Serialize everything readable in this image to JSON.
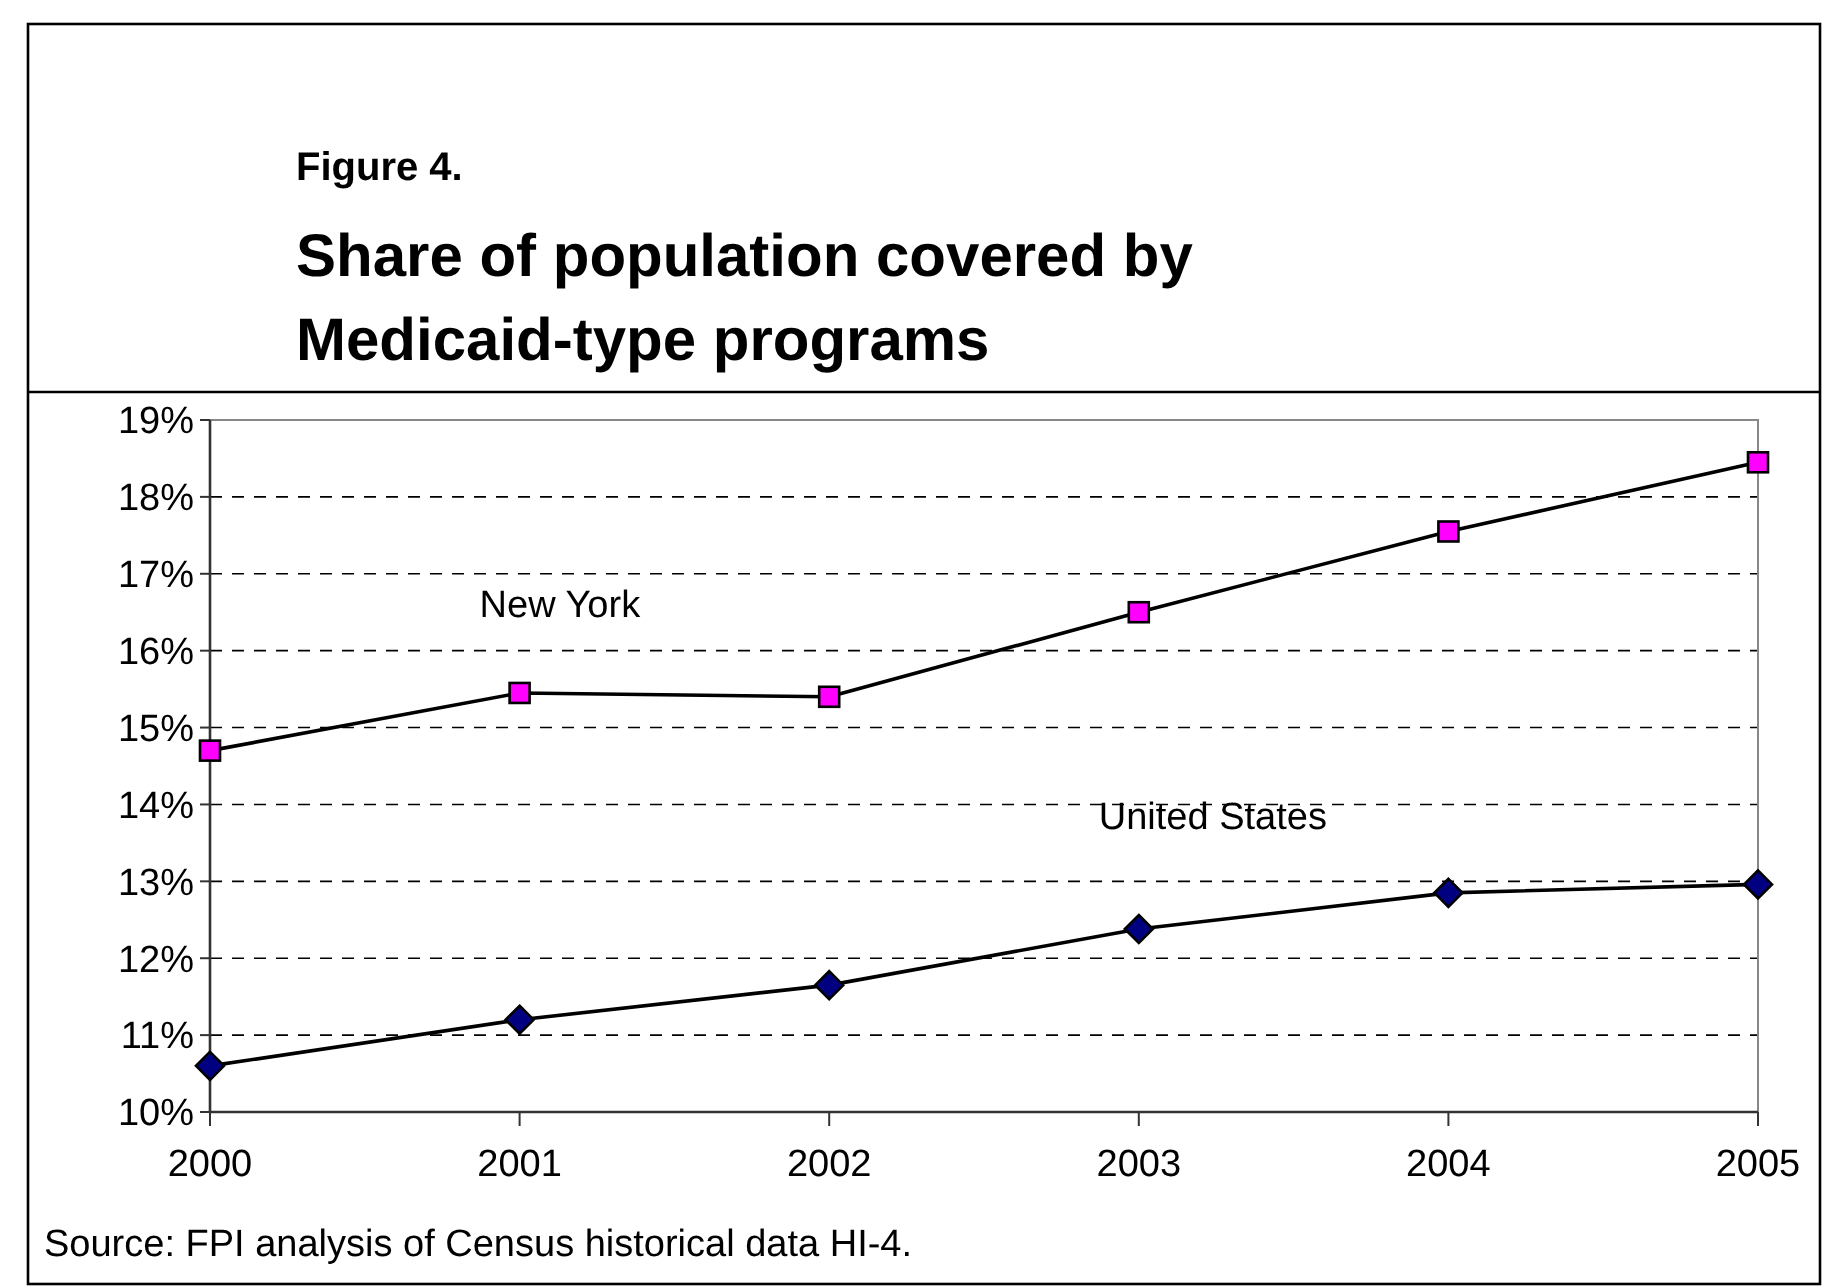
{
  "chart_data": {
    "type": "line",
    "subtitle": "Figure 4.",
    "title": "Share of population covered by Medicaid-type programs",
    "x": [
      2000,
      2001,
      2002,
      2003,
      2004,
      2005
    ],
    "xlim": [
      2000,
      2005
    ],
    "xticks": [
      2000,
      2001,
      2002,
      2003,
      2004,
      2005
    ],
    "ylim": [
      10,
      19
    ],
    "yticks": [
      {
        "value": 10,
        "label": "10%"
      },
      {
        "value": 11,
        "label": "11%"
      },
      {
        "value": 12,
        "label": "12%"
      },
      {
        "value": 13,
        "label": "13%"
      },
      {
        "value": 14,
        "label": "14%"
      },
      {
        "value": 15,
        "label": "15%"
      },
      {
        "value": 16,
        "label": "16%"
      },
      {
        "value": 17,
        "label": "17%"
      },
      {
        "value": 18,
        "label": "18%"
      },
      {
        "value": 19,
        "label": "19%"
      }
    ],
    "grid": "y",
    "series": [
      {
        "name": "New York",
        "color": "#ff00ff",
        "marker": "square",
        "values": [
          14.7,
          15.45,
          15.4,
          16.5,
          17.55,
          18.45
        ]
      },
      {
        "name": "United States",
        "color": "#000080",
        "marker": "diamond",
        "values": [
          10.6,
          11.2,
          11.65,
          12.38,
          12.85,
          12.96
        ]
      }
    ],
    "annotations": [
      "Source: FPI analysis of Census historical data HI-4."
    ]
  }
}
